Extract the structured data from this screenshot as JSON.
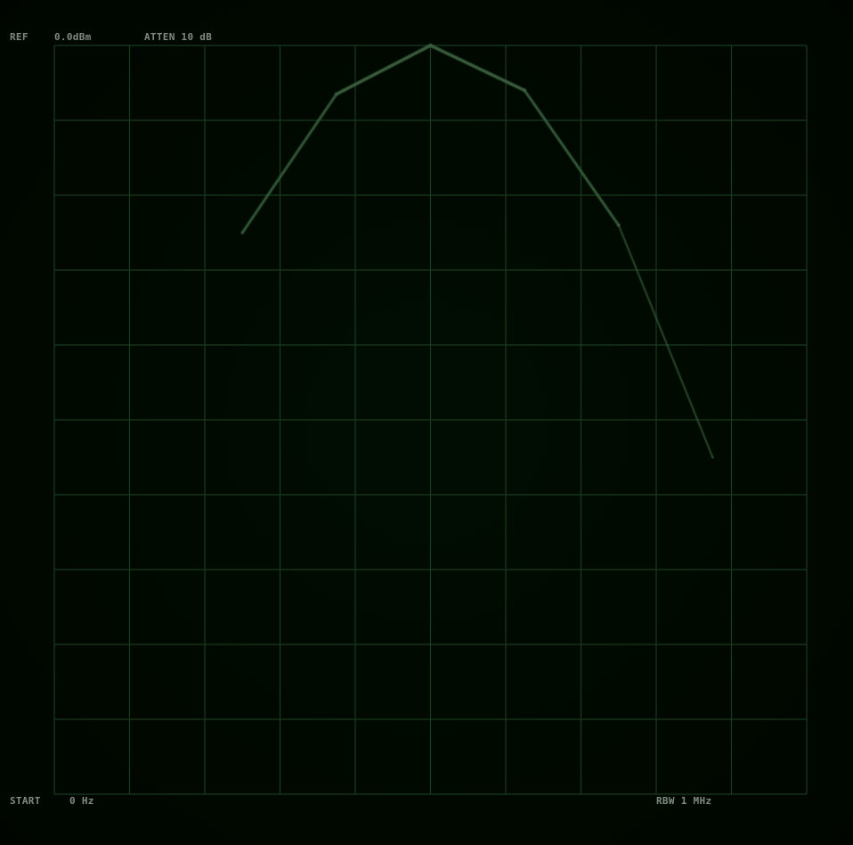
{
  "header": {
    "ref_label": "REF",
    "ref_value": "0.0dBm",
    "atten": "ATTEN 10 dB"
  },
  "footer": {
    "start_label": "START",
    "start_value": "0 Hz",
    "rbw": "RBW 1 MHz"
  },
  "colors": {
    "grid": "#1a3a20",
    "trace": "#3a5e3e",
    "trace_glow": "#2e5a34",
    "text": "#7f8a80",
    "background": "#000900"
  },
  "chart_data": {
    "type": "line",
    "title": "",
    "xlabel": "",
    "ylabel": "",
    "grid": true,
    "divisions": {
      "x": 10,
      "y": 10
    },
    "xlim": [
      0,
      10
    ],
    "ylim": [
      -10,
      0
    ],
    "series": [
      {
        "x": [
          2.5,
          3.75,
          5.0,
          6.25,
          7.5,
          8.75
        ],
        "values": [
          -2.5,
          -0.65,
          0.0,
          -0.6,
          -2.4,
          -5.5
        ]
      }
    ]
  }
}
